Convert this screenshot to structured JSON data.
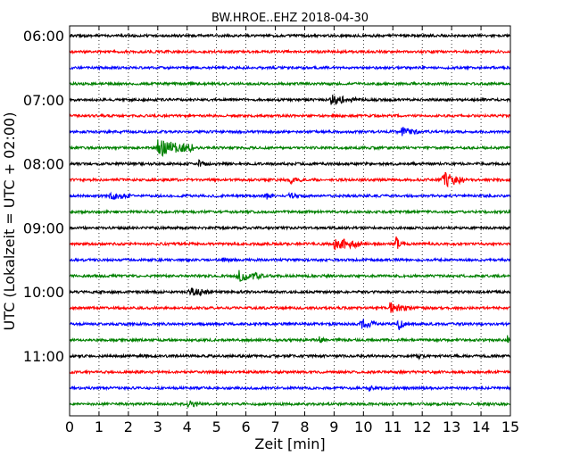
{
  "chart_data": {
    "type": "line",
    "title": "BW.HROE..EHZ 2018-04-30",
    "xlabel": "Zeit  [min]",
    "ylabel": "UTC (Lokalzeit = UTC + 02:00)",
    "xlim": [
      0,
      15
    ],
    "x_ticks": [
      "0",
      "1",
      "2",
      "3",
      "4",
      "5",
      "6",
      "7",
      "8",
      "9",
      "10",
      "11",
      "12",
      "13",
      "14",
      "15"
    ],
    "y_tick_labels": [
      "06:00",
      "07:00",
      "08:00",
      "09:00",
      "10:00",
      "11:00"
    ],
    "grid": "vertical-dotted",
    "colors": [
      "#000000",
      "#ff0000",
      "#0000ff",
      "#008000"
    ],
    "series": [
      {
        "start": "06:00",
        "color": "#000000",
        "events": []
      },
      {
        "start": "06:15",
        "color": "#ff0000",
        "events": []
      },
      {
        "start": "06:30",
        "color": "#0000ff",
        "events": []
      },
      {
        "start": "06:45",
        "color": "#008000",
        "events": []
      },
      {
        "start": "07:00",
        "color": "#000000",
        "events": [
          {
            "t": 8.9,
            "amp": 5,
            "dur": 0.6
          }
        ]
      },
      {
        "start": "07:15",
        "color": "#ff0000",
        "events": []
      },
      {
        "start": "07:30",
        "color": "#0000ff",
        "events": [
          {
            "t": 11.3,
            "amp": 5,
            "dur": 0.4
          }
        ]
      },
      {
        "start": "07:45",
        "color": "#008000",
        "events": [
          {
            "t": 3.0,
            "amp": 9,
            "dur": 1.0
          }
        ]
      },
      {
        "start": "08:00",
        "color": "#000000",
        "events": [
          {
            "t": 4.4,
            "amp": 4,
            "dur": 0.15
          }
        ]
      },
      {
        "start": "08:15",
        "color": "#ff0000",
        "events": [
          {
            "t": 7.5,
            "amp": 4,
            "dur": 0.2
          },
          {
            "t": 12.7,
            "amp": 9,
            "dur": 0.5
          }
        ]
      },
      {
        "start": "08:30",
        "color": "#0000ff",
        "events": [
          {
            "t": 1.4,
            "amp": 4,
            "dur": 0.4
          },
          {
            "t": 6.7,
            "amp": 5,
            "dur": 0.1
          },
          {
            "t": 7.5,
            "amp": 5,
            "dur": 0.1
          }
        ]
      },
      {
        "start": "08:45",
        "color": "#008000",
        "events": []
      },
      {
        "start": "09:00",
        "color": "#000000",
        "events": []
      },
      {
        "start": "09:15",
        "color": "#ff0000",
        "events": [
          {
            "t": 9.0,
            "amp": 6,
            "dur": 0.9
          },
          {
            "t": 11.1,
            "amp": 10,
            "dur": 0.1
          }
        ]
      },
      {
        "start": "09:30",
        "color": "#0000ff",
        "events": [
          {
            "t": 5.2,
            "amp": 4,
            "dur": 0.1
          }
        ]
      },
      {
        "start": "09:45",
        "color": "#008000",
        "events": [
          {
            "t": 5.7,
            "amp": 6,
            "dur": 0.7
          }
        ]
      },
      {
        "start": "10:00",
        "color": "#000000",
        "events": [
          {
            "t": 4.1,
            "amp": 4,
            "dur": 0.5
          }
        ]
      },
      {
        "start": "10:15",
        "color": "#ff0000",
        "events": [
          {
            "t": 10.9,
            "amp": 6,
            "dur": 0.5
          }
        ]
      },
      {
        "start": "10:30",
        "color": "#0000ff",
        "events": [
          {
            "t": 9.9,
            "amp": 6,
            "dur": 0.3
          },
          {
            "t": 11.2,
            "amp": 8,
            "dur": 0.1
          }
        ]
      },
      {
        "start": "10:45",
        "color": "#008000",
        "events": [
          {
            "t": 8.5,
            "amp": 4,
            "dur": 0.1
          },
          {
            "t": 14.9,
            "amp": 4,
            "dur": 0.1
          }
        ]
      },
      {
        "start": "11:00",
        "color": "#000000",
        "events": [
          {
            "t": 11.8,
            "amp": 5,
            "dur": 0.1
          }
        ]
      },
      {
        "start": "11:15",
        "color": "#ff0000",
        "events": []
      },
      {
        "start": "11:30",
        "color": "#0000ff",
        "events": [
          {
            "t": 10.2,
            "amp": 4,
            "dur": 0.1
          }
        ]
      },
      {
        "start": "11:45",
        "color": "#008000",
        "events": [
          {
            "t": 4.0,
            "amp": 4,
            "dur": 0.3
          }
        ]
      }
    ]
  }
}
